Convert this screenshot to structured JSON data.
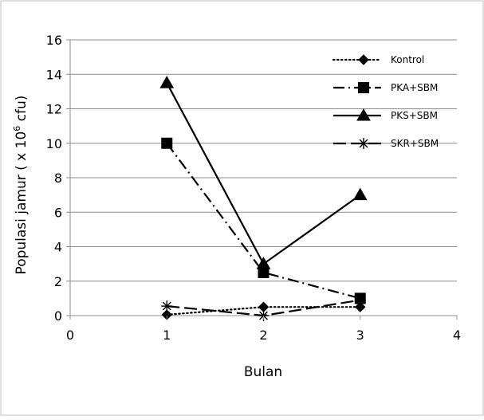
{
  "chart_data": {
    "type": "line",
    "title": "",
    "xlabel": "Bulan",
    "ylabel_parts": {
      "before": "Populasi  jamur ( x 10",
      "sup": "6",
      "after": " cfu)"
    },
    "xlim": [
      0,
      4
    ],
    "ylim": [
      0,
      16
    ],
    "x_ticks": [
      "0",
      "1",
      "2",
      "3",
      "4"
    ],
    "y_ticks": [
      "0",
      "2",
      "4",
      "6",
      "8",
      "10",
      "12",
      "14",
      "16"
    ],
    "grid": "horizontal",
    "legend_position": "top-right",
    "series": [
      {
        "name": "Kontrol",
        "marker": "diamond",
        "dash": "dotted",
        "x": [
          1,
          2,
          3
        ],
        "y": [
          0.05,
          0.5,
          0.5
        ]
      },
      {
        "name": "PKA+SBM",
        "marker": "square",
        "dash": "dashdot",
        "x": [
          1,
          2,
          3
        ],
        "y": [
          10,
          2.5,
          1.0
        ]
      },
      {
        "name": "PKS+SBM",
        "marker": "triangle",
        "dash": "solid",
        "x": [
          1,
          2,
          3
        ],
        "y": [
          13.5,
          3.0,
          7.0
        ]
      },
      {
        "name": "SKR+SBM",
        "marker": "star",
        "dash": "longdash",
        "x": [
          1,
          2,
          3
        ],
        "y": [
          0.55,
          0.0,
          0.9
        ]
      }
    ]
  }
}
